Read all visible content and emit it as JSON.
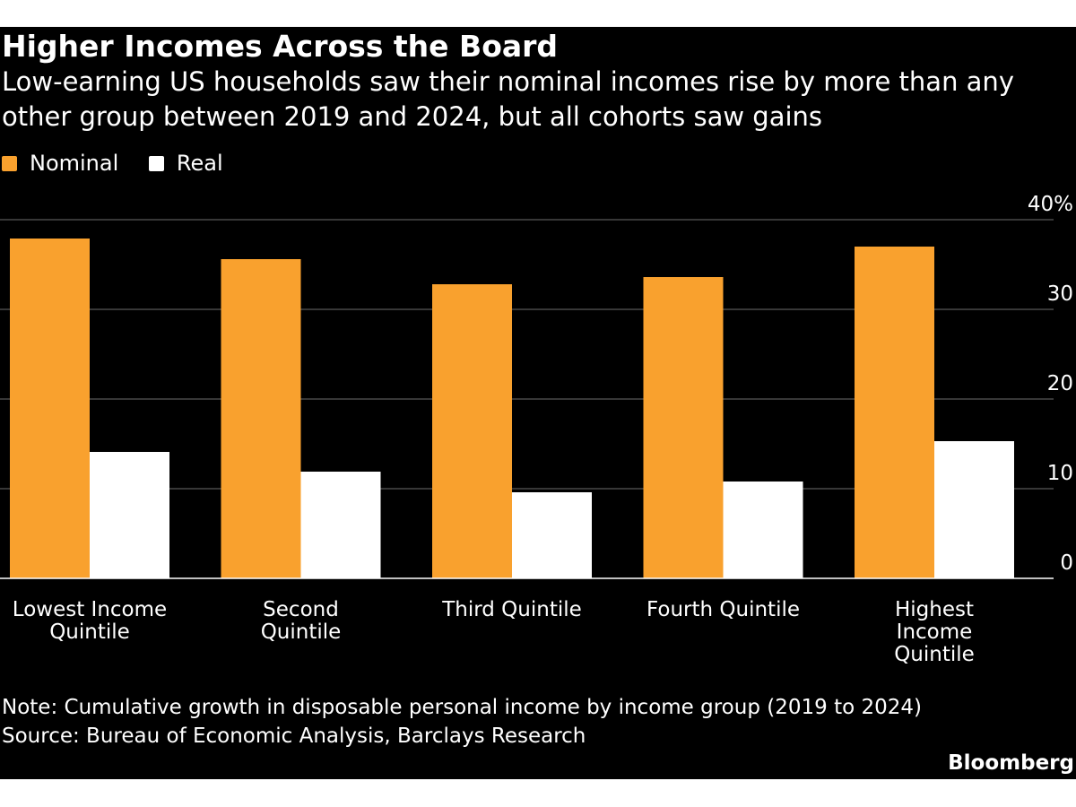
{
  "header": {
    "title": "Higher Incomes Across the Board",
    "subtitle": "Low-earning US households saw their nominal incomes rise by more than any other group between 2019 and 2024, but all cohorts saw gains"
  },
  "legend": [
    {
      "label": "Nominal",
      "color": "#f9a12e"
    },
    {
      "label": "Real",
      "color": "#ffffff"
    }
  ],
  "chart_data": {
    "type": "bar",
    "title": "Higher Incomes Across the Board",
    "categories": [
      [
        "Lowest Income",
        "Quintile"
      ],
      [
        "Second",
        "Quintile"
      ],
      [
        "Third Quintile"
      ],
      [
        "Fourth Quintile"
      ],
      [
        "Highest",
        "Income",
        "Quintile"
      ]
    ],
    "series": [
      {
        "name": "Nominal",
        "color": "#f9a12e",
        "values": [
          37.9,
          35.6,
          32.8,
          33.6,
          37.0
        ]
      },
      {
        "name": "Real",
        "color": "#ffffff",
        "values": [
          14.1,
          11.9,
          9.6,
          10.8,
          15.3
        ]
      }
    ],
    "ylim": [
      0,
      40
    ],
    "yticks": [
      0,
      10,
      20,
      30,
      40
    ],
    "ytick_labels": [
      "0",
      "10",
      "20",
      "30",
      "40%"
    ],
    "grid": true,
    "xlabel": "",
    "ylabel": ""
  },
  "footer": {
    "note": "Note: Cumulative growth in disposable personal income by income group (2019 to 2024)",
    "source": "Source: Bureau of Economic Analysis, Barclays Research",
    "brand": "Bloomberg"
  }
}
